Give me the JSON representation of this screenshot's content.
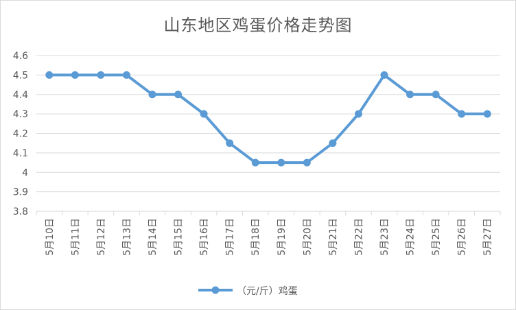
{
  "chart_data": {
    "type": "line",
    "title": "山东地区鸡蛋价格走势图",
    "categories": [
      "5月10日",
      "5月11日",
      "5月12日",
      "5月13日",
      "5月14日",
      "5月15日",
      "5月16日",
      "5月17日",
      "5月18日",
      "5月19日",
      "5月20日",
      "5月21日",
      "5月22日",
      "5月23日",
      "5月24日",
      "5月25日",
      "5月26日",
      "5月27日"
    ],
    "series": [
      {
        "name": "（元/斤）鸡蛋",
        "values": [
          4.5,
          4.5,
          4.5,
          4.5,
          4.4,
          4.4,
          4.3,
          4.15,
          4.05,
          4.05,
          4.05,
          4.15,
          4.3,
          4.5,
          4.4,
          4.4,
          4.3,
          4.3
        ]
      }
    ],
    "y_ticks": [
      "4.6",
      "4.5",
      "4.4",
      "4.3",
      "4.2",
      "4.1",
      "4",
      "3.9",
      "3.8"
    ],
    "ylim": [
      3.8,
      4.6
    ],
    "grid": true,
    "legend_position": "bottom",
    "colors": {
      "series": "#5b9bd5",
      "grid": "#d9d9d9",
      "text": "#595959"
    }
  }
}
